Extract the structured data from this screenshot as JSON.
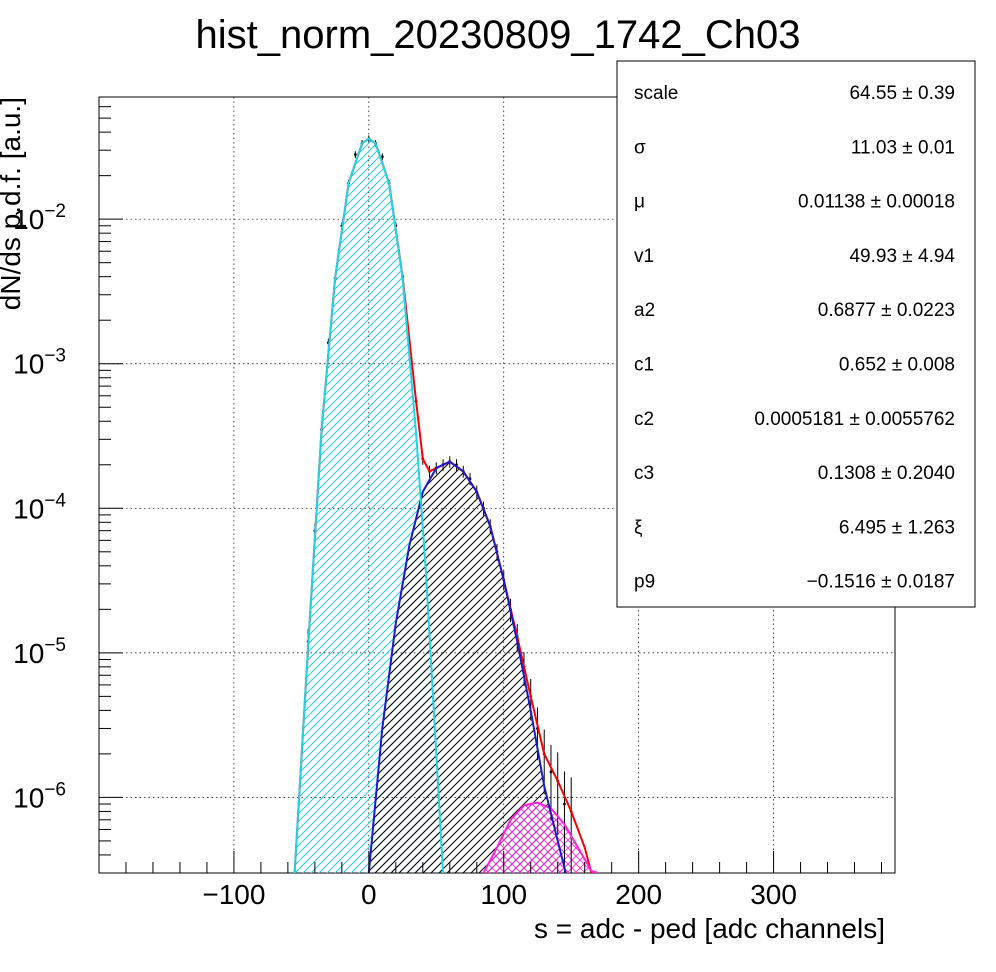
{
  "chart_data": {
    "type": "histogram-fit",
    "title": "hist_norm_20230809_1742_Ch03",
    "xlabel": "s = adc - ped [adc channels]",
    "ylabel": "dN/ds p.d.f. [a.u.]",
    "xlim": [
      -200,
      390
    ],
    "ylim": [
      3e-07,
      0.07
    ],
    "yscale": "log",
    "grid": true,
    "xticks": [
      {
        "value": -100,
        "label": "−100"
      },
      {
        "value": 0,
        "label": "0"
      },
      {
        "value": 100,
        "label": "100"
      },
      {
        "value": 200,
        "label": "200"
      },
      {
        "value": 300,
        "label": "300"
      }
    ],
    "yticks": [
      {
        "value": 1e-06,
        "base": "10",
        "exp": "−6"
      },
      {
        "value": 1e-05,
        "base": "10",
        "exp": "−5"
      },
      {
        "value": 0.0001,
        "base": "10",
        "exp": "−4"
      },
      {
        "value": 0.001,
        "base": "10",
        "exp": "−3"
      },
      {
        "value": 0.01,
        "base": "10",
        "exp": "−2"
      }
    ],
    "series": [
      {
        "role": "pedestal-fit",
        "color": "#22d3e6",
        "hatch": true,
        "x": [
          -55,
          -45,
          -35,
          -25,
          -15,
          -5,
          0,
          5,
          15,
          25,
          35,
          42,
          50,
          55
        ],
        "y": [
          3e-07,
          1.1e-05,
          0.00035,
          0.0039,
          0.0177,
          0.0335,
          0.036,
          0.0335,
          0.0177,
          0.0039,
          0.00033,
          4e-05,
          2e-06,
          3e-07
        ]
      },
      {
        "role": "single-pe-fit",
        "color": "#1a1acc",
        "hatch": true,
        "x": [
          0,
          10,
          20,
          30,
          40,
          50,
          60,
          70,
          80,
          90,
          100,
          110,
          120,
          130,
          140,
          146
        ],
        "y": [
          3e-07,
          3e-06,
          1.6e-05,
          5.5e-05,
          0.00013,
          0.00019,
          0.00021,
          0.00018,
          0.00013,
          7.5e-05,
          3.2e-05,
          1.2e-05,
          4e-06,
          1.2e-06,
          5e-07,
          3e-07
        ]
      },
      {
        "role": "double-pe-fit",
        "color": "#ff22dd",
        "hatch": true,
        "x": [
          85,
          95,
          105,
          115,
          125,
          135,
          145,
          155,
          165,
          170
        ],
        "y": [
          3e-07,
          4.5e-07,
          7e-07,
          8.8e-07,
          9.2e-07,
          8.4e-07,
          6.5e-07,
          4.5e-07,
          3.1e-07,
          3e-07
        ]
      },
      {
        "role": "total-fit",
        "color": "#ff0000",
        "hatch": false,
        "x": [
          -55,
          -45,
          -35,
          -25,
          -15,
          -5,
          0,
          5,
          15,
          25,
          35,
          40,
          45,
          50,
          55,
          60,
          70,
          80,
          90,
          100,
          110,
          120,
          130,
          140,
          150,
          160,
          165
        ],
        "y": [
          3e-07,
          1.1e-05,
          0.00035,
          0.0039,
          0.0177,
          0.0335,
          0.036,
          0.0335,
          0.0178,
          0.004,
          0.00055,
          0.00022,
          0.00018,
          0.00019,
          0.0002,
          0.00021,
          0.00018,
          0.00013,
          7.5e-05,
          3.2e-05,
          1.3e-05,
          5e-06,
          2e-06,
          1.3e-06,
          8e-07,
          4.5e-07,
          3e-07
        ]
      }
    ],
    "data_points": {
      "role": "measured-histogram",
      "color": "#000000",
      "x": [
        -45,
        -40,
        -35,
        -30,
        -25,
        -20,
        -15,
        -10,
        -5,
        0,
        5,
        10,
        15,
        20,
        25,
        30,
        35,
        40,
        45,
        50,
        55,
        60,
        65,
        70,
        75,
        80,
        85,
        90,
        95,
        100,
        105,
        110,
        115,
        120,
        125,
        130,
        135,
        140,
        145,
        150
      ],
      "y": [
        1.2e-05,
        7e-05,
        0.00035,
        0.0014,
        0.0039,
        0.009,
        0.0177,
        0.028,
        0.0335,
        0.036,
        0.0335,
        0.027,
        0.0177,
        0.009,
        0.004,
        0.0014,
        0.00055,
        0.00022,
        0.00018,
        0.00019,
        0.0002,
        0.00021,
        0.0002,
        0.00018,
        0.00016,
        0.00013,
        0.0001,
        7.5e-05,
        5e-05,
        3.2e-05,
        2e-05,
        1.3e-05,
        8e-06,
        5e-06,
        3e-06,
        2e-06,
        1.5e-06,
        1.3e-06,
        9e-07,
        8e-07
      ]
    },
    "stats_box": {
      "rows": [
        {
          "name": "scale",
          "value": "64.55",
          "error": "0.39"
        },
        {
          "name": "σ",
          "value": "11.03",
          "error": "0.01"
        },
        {
          "name": "μ",
          "value": "0.01138",
          "error": "0.00018"
        },
        {
          "name": "v1",
          "value": "49.93",
          "error": "4.94"
        },
        {
          "name": "a2",
          "value": "0.6877",
          "error": "0.0223"
        },
        {
          "name": "c1",
          "value": "0.652",
          "error": "0.008"
        },
        {
          "name": "c2",
          "value": "0.0005181",
          "error": "0.0055762"
        },
        {
          "name": "c3",
          "value": "0.1308",
          "error": "0.2040"
        },
        {
          "name": "ξ",
          "value": "6.495",
          "error": "1.263"
        },
        {
          "name": "p9",
          "value": "−0.1516",
          "error": "0.0187"
        }
      ]
    }
  }
}
